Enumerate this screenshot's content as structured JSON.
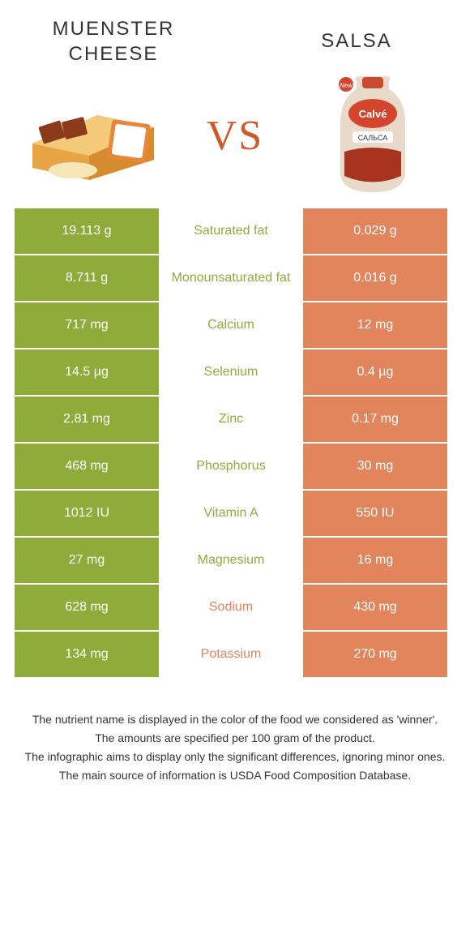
{
  "colors": {
    "green": "#8fac3a",
    "orange": "#e2855d",
    "vs": "#d0582a",
    "text": "#333333",
    "white": "#ffffff"
  },
  "food_left": {
    "name": "MUENSTER CHEESE"
  },
  "food_right": {
    "name": "SALSA"
  },
  "vs_label": "VS",
  "table": {
    "rows": [
      {
        "left": "19.113 g",
        "label": "Saturated fat",
        "right": "0.029 g",
        "winner": "left"
      },
      {
        "left": "8.711 g",
        "label": "Monounsaturated fat",
        "right": "0.016 g",
        "winner": "left"
      },
      {
        "left": "717 mg",
        "label": "Calcium",
        "right": "12 mg",
        "winner": "left"
      },
      {
        "left": "14.5 µg",
        "label": "Selenium",
        "right": "0.4 µg",
        "winner": "left"
      },
      {
        "left": "2.81 mg",
        "label": "Zinc",
        "right": "0.17 mg",
        "winner": "left"
      },
      {
        "left": "468 mg",
        "label": "Phosphorus",
        "right": "30 mg",
        "winner": "left"
      },
      {
        "left": "1012 IU",
        "label": "Vitamin A",
        "right": "550 IU",
        "winner": "left"
      },
      {
        "left": "27 mg",
        "label": "Magnesium",
        "right": "16 mg",
        "winner": "left"
      },
      {
        "left": "628 mg",
        "label": "Sodium",
        "right": "430 mg",
        "winner": "right"
      },
      {
        "left": "134 mg",
        "label": "Potassium",
        "right": "270 mg",
        "winner": "right"
      }
    ]
  },
  "footer": {
    "line1": "The nutrient name is displayed in the color of the food we considered as 'winner'.",
    "line2": "The amounts are specified per 100 gram of the product.",
    "line3": "The infographic aims to display only the significant differences, ignoring minor ones.",
    "line4": "The main source of information is USDA Food Composition Database."
  }
}
